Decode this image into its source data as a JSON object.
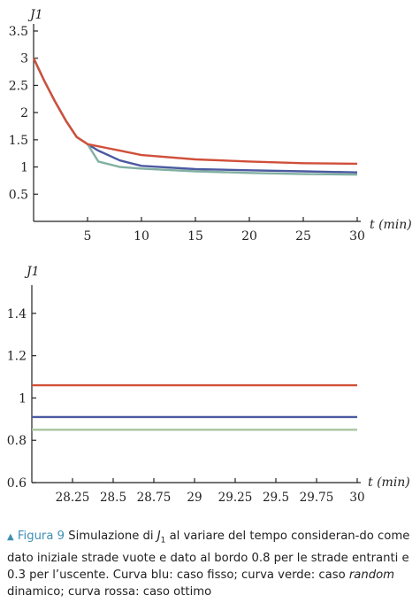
{
  "chart_data": [
    {
      "type": "line",
      "ylabel": "J1",
      "xlabel": "t (min)",
      "xlim": [
        0,
        30
      ],
      "ylim": [
        0,
        3.5
      ],
      "x_ticks": [
        "5",
        "10",
        "15",
        "20",
        "25",
        "30"
      ],
      "y_ticks": [
        "0.5",
        "1",
        "1.5",
        "2",
        "2.5",
        "3",
        "3.5"
      ],
      "series": [
        {
          "color": "#4c5aa0",
          "x": [
            0,
            1,
            2,
            3,
            4,
            5,
            6,
            8,
            10,
            15,
            20,
            25,
            30
          ],
          "y": [
            3.0,
            2.58,
            2.2,
            1.85,
            1.55,
            1.42,
            1.3,
            1.12,
            1.02,
            0.96,
            0.94,
            0.92,
            0.9
          ]
        },
        {
          "color": "#82b0a2",
          "x": [
            0,
            1,
            2,
            3,
            4,
            5,
            6,
            8,
            10,
            15,
            20,
            25,
            30
          ],
          "y": [
            3.0,
            2.58,
            2.2,
            1.85,
            1.55,
            1.42,
            1.1,
            1.0,
            0.97,
            0.92,
            0.89,
            0.87,
            0.86
          ]
        },
        {
          "color": "#d0503a",
          "x": [
            0,
            1,
            2,
            3,
            4,
            5,
            8,
            10,
            15,
            20,
            25,
            30
          ],
          "y": [
            3.0,
            2.58,
            2.2,
            1.85,
            1.55,
            1.42,
            1.3,
            1.22,
            1.14,
            1.1,
            1.07,
            1.06
          ]
        }
      ]
    },
    {
      "type": "line",
      "ylabel": "J1",
      "xlabel": "t (min)",
      "xlim": [
        28,
        30
      ],
      "ylim": [
        0.6,
        1.5
      ],
      "x_ticks": [
        "28.25",
        "28.5",
        "28.75",
        "29",
        "29.25",
        "29.5",
        "29.75",
        "30"
      ],
      "y_ticks": [
        "0.6",
        "0.8",
        "1",
        "1.2",
        "1.4"
      ],
      "series": [
        {
          "color": "#d0503a",
          "x": [
            28,
            30
          ],
          "y": [
            1.06,
            1.06
          ]
        },
        {
          "color": "#4c5aa0",
          "x": [
            28,
            30
          ],
          "y": [
            0.91,
            0.91
          ]
        },
        {
          "color": "#a9c4a0",
          "x": [
            28,
            30
          ],
          "y": [
            0.85,
            0.85
          ]
        }
      ]
    }
  ],
  "caption": {
    "figure_label": "Figura 9",
    "text_1": " Simulazione di ",
    "j_symbol": "J",
    "j_sub": "1",
    "text_2": " al variare del tempo consideran-do come dato iniziale strade vuote e dato al bordo 0.8 per le strade entranti e 0.3 per l’uscente. Curva blu: caso fisso; curva verde: caso ",
    "random": "random",
    "text_3": " dinamico; curva rossa: caso ottimo"
  }
}
